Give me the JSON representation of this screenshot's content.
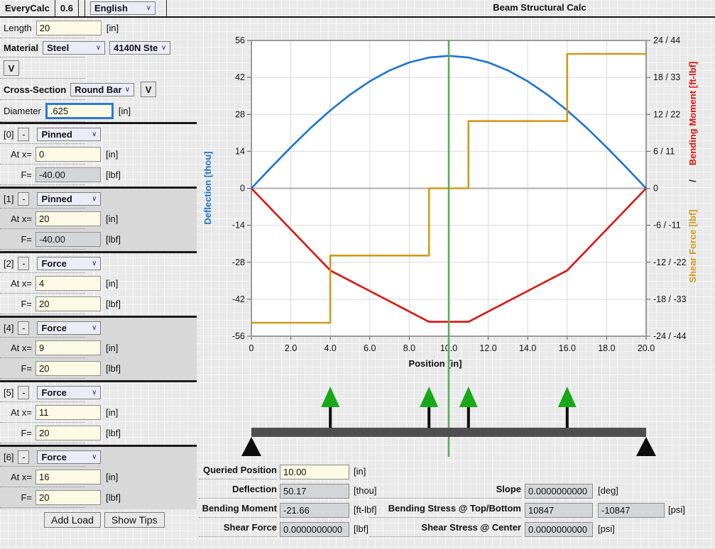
{
  "app": {
    "name": "EveryCalc",
    "version": "0.6",
    "language": "English",
    "title": "Beam Structural Calc"
  },
  "form": {
    "length": {
      "label": "Length",
      "value": "20",
      "unit": "[in]"
    },
    "material": {
      "label": "Material",
      "type": "Steel",
      "grade": "4140N Ste",
      "details_button": "V"
    },
    "cross_section": {
      "label": "Cross-Section",
      "value": "Round Bar",
      "details_button": "V"
    },
    "diameter": {
      "label": "Diameter",
      "value": ".625",
      "unit": "[in]"
    }
  },
  "loads": {
    "at_label": "At x=",
    "f_label": "F=",
    "x_unit": "[in]",
    "f_unit": "[lbf]",
    "remove_label": "-",
    "add_button": "Add Load",
    "tips_button": "Show Tips",
    "items": [
      {
        "index": "[0]",
        "type": "Pinned",
        "x": "0",
        "f": "-40.00",
        "f_readonly": true
      },
      {
        "index": "[1]",
        "type": "Pinned",
        "x": "20",
        "f": "-40.00",
        "f_readonly": true
      },
      {
        "index": "[2]",
        "type": "Force",
        "x": "4",
        "f": "20",
        "f_readonly": false
      },
      {
        "index": "[4]",
        "type": "Force",
        "x": "9",
        "f": "20",
        "f_readonly": false
      },
      {
        "index": "[5]",
        "type": "Force",
        "x": "11",
        "f": "20",
        "f_readonly": false
      },
      {
        "index": "[6]",
        "type": "Force",
        "x": "16",
        "f": "20",
        "f_readonly": false
      }
    ]
  },
  "chart_data": {
    "type": "line",
    "xlabel": "Position [in]",
    "x_ticks": [
      0,
      2,
      4,
      6,
      8,
      10,
      12,
      14,
      16,
      18,
      20
    ],
    "x_tick_labels": [
      "0",
      "2.0",
      "4.0",
      "6.0",
      "8.0",
      "10.0",
      "12.0",
      "14.0",
      "16.0",
      "18.0",
      "20.0"
    ],
    "left_axis": {
      "label": "Deflection [thou]",
      "color": "#1d72d2",
      "range": [
        -56,
        56
      ],
      "tick_values": [
        56,
        42,
        28,
        14,
        0,
        -14,
        -28,
        -42,
        -56
      ],
      "tick_labels": [
        "56",
        "42",
        "28",
        "14",
        "0",
        "-14",
        "-28",
        "-42",
        "-56"
      ]
    },
    "right_axis": {
      "moment_label": "Bending Moment [ft-lbf]",
      "separator": "/",
      "shear_label": "Shear Force [lbf]",
      "moment_color": "#de1310",
      "shear_color": "#d09a18",
      "moment_range": [
        -24,
        24
      ],
      "shear_range": [
        -44,
        44
      ],
      "tick_labels": [
        "24 / 44",
        "18 / 33",
        "12 / 22",
        "6 / 11",
        "0",
        "-6 / -11",
        "-12 / -22",
        "-18 / -33",
        "-24 / -44"
      ]
    },
    "series": [
      {
        "name": "Deflection",
        "unit": "thou",
        "axis": "deflection",
        "color": "#1d72d2",
        "points": [
          [
            0,
            0
          ],
          [
            1,
            7.86
          ],
          [
            2,
            15.53
          ],
          [
            3,
            22.82
          ],
          [
            4,
            29.52
          ],
          [
            5,
            35.46
          ],
          [
            6,
            40.53
          ],
          [
            7,
            44.63
          ],
          [
            8,
            47.67
          ],
          [
            9,
            49.54
          ],
          [
            10,
            50.17
          ],
          [
            11,
            49.54
          ],
          [
            12,
            47.67
          ],
          [
            13,
            44.63
          ],
          [
            14,
            40.53
          ],
          [
            15,
            35.46
          ],
          [
            16,
            29.52
          ],
          [
            17,
            22.82
          ],
          [
            18,
            15.53
          ],
          [
            19,
            7.86
          ],
          [
            20,
            0
          ]
        ]
      },
      {
        "name": "Bending Moment",
        "unit": "ft-lbf",
        "axis": "moment",
        "color": "#de1310",
        "points": [
          [
            0,
            0
          ],
          [
            4,
            -13.33
          ],
          [
            9,
            -21.66
          ],
          [
            11,
            -21.66
          ],
          [
            16,
            -13.33
          ],
          [
            20,
            0
          ]
        ]
      },
      {
        "name": "Shear Force",
        "unit": "lbf",
        "axis": "shear",
        "color": "#d09a18",
        "points": [
          [
            0,
            -40
          ],
          [
            4,
            -40
          ],
          [
            4,
            -20
          ],
          [
            9,
            -20
          ],
          [
            9,
            0
          ],
          [
            11,
            0
          ],
          [
            11,
            20
          ],
          [
            16,
            20
          ],
          [
            16,
            40
          ],
          [
            20,
            40
          ]
        ]
      }
    ],
    "query_line": {
      "x": 10,
      "color": "#57ac57"
    },
    "beam_diagram": {
      "beam_color": "#4f4f4f",
      "support_color": "#0d0d0d",
      "support_positions": [
        0,
        20
      ],
      "arrow_positions": [
        4,
        9,
        11,
        16
      ],
      "arrow_color": "#18a818"
    }
  },
  "results": {
    "queried_position": {
      "label": "Queried Position",
      "value": "10.00",
      "unit": "[in]"
    },
    "deflection": {
      "label": "Deflection",
      "value": "50.17",
      "unit": "[thou]"
    },
    "slope": {
      "label": "Slope",
      "value": "0.0000000000",
      "unit": "[deg]"
    },
    "bending_moment": {
      "label": "Bending Moment",
      "value": "-21.66",
      "unit": "[ft-lbf]"
    },
    "bending_stress": {
      "label": "Bending Stress @ Top/Bottom",
      "value_top": "10847",
      "value_bottom": "-10847",
      "unit": "[psi]"
    },
    "shear_force": {
      "label": "Shear Force",
      "value": "0.0000000000",
      "unit": "[lbf]"
    },
    "shear_stress": {
      "label": "Shear Stress @ Center",
      "value": "0.0000000000",
      "unit": "[psi]"
    }
  }
}
